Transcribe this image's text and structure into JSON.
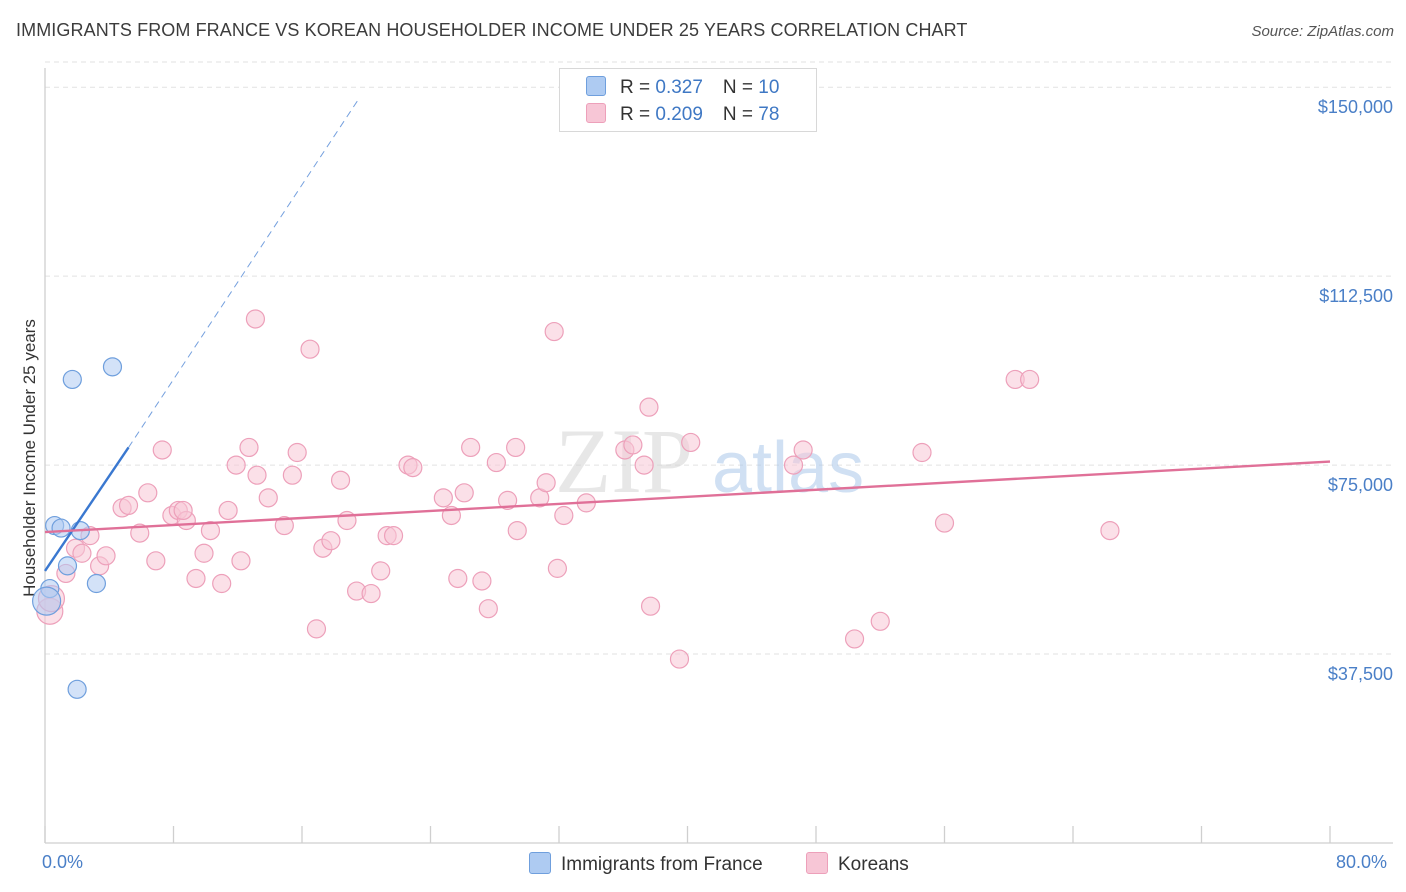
{
  "header": {
    "title": "IMMIGRANTS FROM FRANCE VS KOREAN HOUSEHOLDER INCOME UNDER 25 YEARS CORRELATION CHART",
    "source": "Source: ZipAtlas.com"
  },
  "colors": {
    "france_fill": "#aecbf2",
    "france_stroke": "#6f9fdd",
    "france_line": "#3a78d0",
    "korea_fill": "#f7c6d6",
    "korea_stroke": "#eda0ba",
    "korea_line": "#e07098",
    "axis_label": "#4a7fc7",
    "grid": "#e2e2e2"
  },
  "legend": {
    "france": {
      "r_label": "R = ",
      "r_value": "0.327",
      "n_label": "N = ",
      "n_value": "10"
    },
    "korea": {
      "r_label": "R = ",
      "r_value": "0.209",
      "n_label": "N = ",
      "n_value": "78"
    }
  },
  "bottom_legend": {
    "france": "Immigrants from France",
    "korea": "Koreans"
  },
  "watermark": {
    "part1": "ZIP",
    "part2": "atlas"
  },
  "chart_data": {
    "type": "scatter",
    "title": "IMMIGRANTS FROM FRANCE VS KOREAN HOUSEHOLDER INCOME UNDER 25 YEARS CORRELATION CHART",
    "xlabel": "",
    "ylabel": "Householder Income Under 25 years",
    "xlim": [
      0,
      80
    ],
    "ylim": [
      0,
      155000
    ],
    "x_tick_labels": [
      "0.0%",
      "80.0%"
    ],
    "y_ticks": [
      {
        "value": 37500,
        "label": "$37,500"
      },
      {
        "value": 75000,
        "label": "$75,000"
      },
      {
        "value": 112500,
        "label": "$112,500"
      },
      {
        "value": 150000,
        "label": "$150,000"
      }
    ],
    "series": [
      {
        "name": "Immigrants from France",
        "key": "france",
        "R": 0.327,
        "N": 10,
        "points": [
          [
            0.3,
            50500
          ],
          [
            0.6,
            63000
          ],
          [
            1.0,
            62500
          ],
          [
            1.4,
            55000
          ],
          [
            1.7,
            92000
          ],
          [
            2.0,
            30500
          ],
          [
            2.2,
            62000
          ],
          [
            3.2,
            51500
          ],
          [
            4.2,
            94500
          ],
          [
            0.1,
            48000
          ]
        ],
        "trend": {
          "x0": 0,
          "y0": 54000,
          "x1": 5.2,
          "y1": 78500,
          "dash_x1": 19.6,
          "dash_y1": 148000
        }
      },
      {
        "name": "Koreans",
        "key": "korea",
        "R": 0.209,
        "N": 78,
        "points": [
          [
            0.3,
            46000
          ],
          [
            0.4,
            48500
          ],
          [
            1.3,
            53500
          ],
          [
            1.9,
            58500
          ],
          [
            2.3,
            57500
          ],
          [
            2.8,
            61000
          ],
          [
            3.4,
            55000
          ],
          [
            3.8,
            57000
          ],
          [
            4.8,
            66500
          ],
          [
            5.2,
            67000
          ],
          [
            5.9,
            61500
          ],
          [
            6.4,
            69500
          ],
          [
            6.9,
            56000
          ],
          [
            7.3,
            78000
          ],
          [
            7.9,
            65000
          ],
          [
            8.3,
            66000
          ],
          [
            8.8,
            64000
          ],
          [
            9.4,
            52500
          ],
          [
            9.9,
            57500
          ],
          [
            10.3,
            62000
          ],
          [
            11.0,
            51500
          ],
          [
            11.4,
            66000
          ],
          [
            11.9,
            75000
          ],
          [
            12.2,
            56000
          ],
          [
            12.7,
            78500
          ],
          [
            13.2,
            73000
          ],
          [
            13.9,
            68500
          ],
          [
            14.9,
            63000
          ],
          [
            15.4,
            73000
          ],
          [
            15.7,
            77500
          ],
          [
            16.5,
            98000
          ],
          [
            16.9,
            42500
          ],
          [
            17.3,
            58500
          ],
          [
            17.8,
            60000
          ],
          [
            18.4,
            72000
          ],
          [
            18.8,
            64000
          ],
          [
            19.4,
            50000
          ],
          [
            20.3,
            49500
          ],
          [
            20.9,
            54000
          ],
          [
            21.3,
            61000
          ],
          [
            21.7,
            61000
          ],
          [
            22.6,
            75000
          ],
          [
            22.9,
            74500
          ],
          [
            24.8,
            68500
          ],
          [
            25.3,
            65000
          ],
          [
            25.7,
            52500
          ],
          [
            26.1,
            69500
          ],
          [
            26.5,
            78500
          ],
          [
            27.2,
            52000
          ],
          [
            27.6,
            46500
          ],
          [
            28.1,
            75500
          ],
          [
            28.8,
            68000
          ],
          [
            29.3,
            78500
          ],
          [
            29.4,
            62000
          ],
          [
            30.8,
            68500
          ],
          [
            31.2,
            71500
          ],
          [
            31.9,
            54500
          ],
          [
            32.3,
            65000
          ],
          [
            33.7,
            67500
          ],
          [
            36.1,
            78000
          ],
          [
            36.6,
            79000
          ],
          [
            37.3,
            75000
          ],
          [
            37.6,
            86500
          ],
          [
            37.7,
            47000
          ],
          [
            39.5,
            36500
          ],
          [
            40.2,
            79500
          ],
          [
            46.6,
            75000
          ],
          [
            47.2,
            78000
          ],
          [
            50.4,
            40500
          ],
          [
            52.0,
            44000
          ],
          [
            54.6,
            77500
          ],
          [
            56.0,
            63500
          ],
          [
            60.4,
            92000
          ],
          [
            61.3,
            92000
          ],
          [
            66.3,
            62000
          ],
          [
            13.1,
            104000
          ],
          [
            31.7,
            101500
          ],
          [
            8.6,
            66000
          ]
        ],
        "trend": {
          "x0": 0,
          "y0": 61700,
          "x1": 80,
          "y1": 75700
        }
      }
    ]
  }
}
